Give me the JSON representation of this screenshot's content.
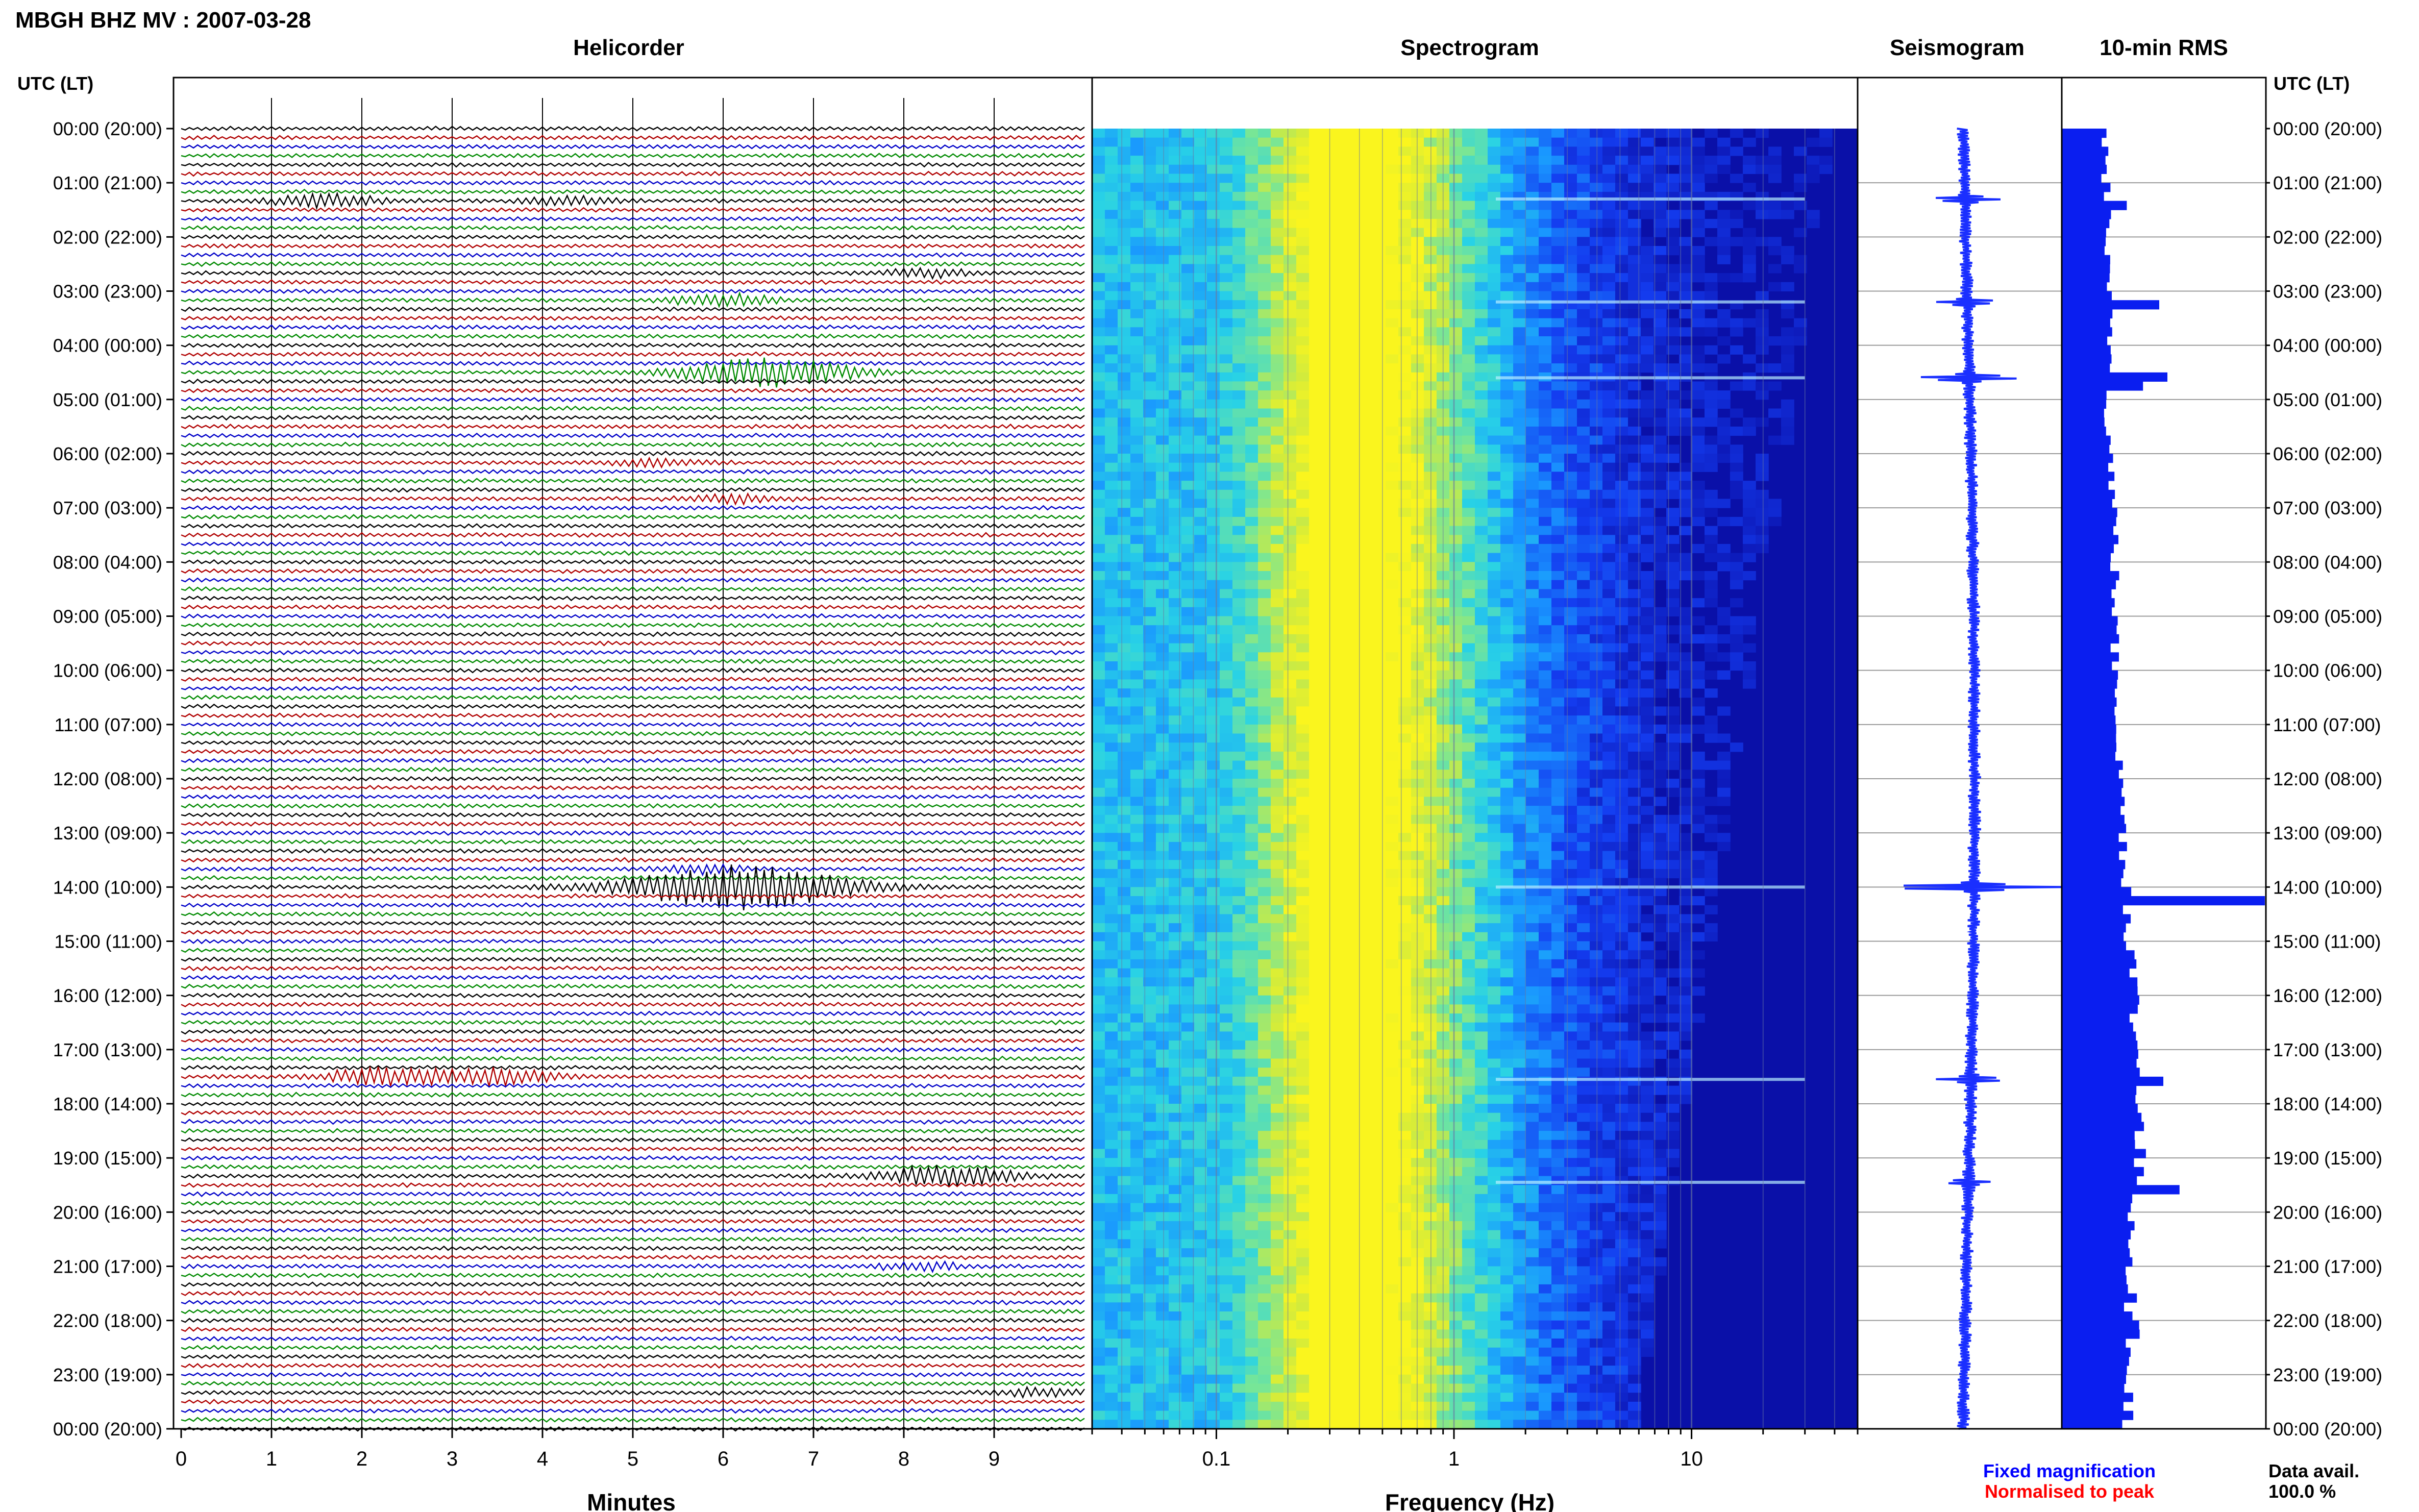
{
  "title": "MBGH BHZ MV : 2007-03-28",
  "panels": {
    "helicorder": "Helicorder",
    "spectrogram": "Spectrogram",
    "seismogram": "Seismogram",
    "rms": "10-min RMS"
  },
  "axis_labels": {
    "left_header": "UTC (LT)",
    "right_header": "UTC (LT)",
    "minutes": "Minutes",
    "frequency": "Frequency (Hz)"
  },
  "legend": {
    "fixed": "Fixed magnification",
    "normalised": "Normalised to peak",
    "fixed_color": "#0000ff",
    "normalised_color": "#ff0000"
  },
  "data_avail": {
    "label": "Data avail.",
    "value": "100.0 %"
  },
  "colors": {
    "trace_cycle": [
      "#000000",
      "#b00000",
      "#0000c8",
      "#008a00"
    ],
    "seismogram": "#1a2fff",
    "rms_bar": "#0a1ef0",
    "spectrogram_low": "#0a0aa0",
    "spectrogram_mid": "#1fb3ff",
    "spectrogram_high": "#f0f020"
  },
  "chart_data": [
    {
      "type": "heatmap",
      "name": "Helicorder",
      "y_labels": [
        "00:00 (20:00)",
        "01:00 (21:00)",
        "02:00 (22:00)",
        "03:00 (23:00)",
        "04:00 (00:00)",
        "05:00 (01:00)",
        "06:00 (02:00)",
        "07:00 (03:00)",
        "08:00 (04:00)",
        "09:00 (05:00)",
        "10:00 (06:00)",
        "11:00 (07:00)",
        "12:00 (08:00)",
        "13:00 (09:00)",
        "14:00 (10:00)",
        "15:00 (11:00)",
        "16:00 (12:00)",
        "17:00 (13:00)",
        "18:00 (14:00)",
        "19:00 (15:00)",
        "20:00 (16:00)",
        "21:00 (17:00)",
        "22:00 (18:00)",
        "23:00 (19:00)",
        "00:00 (20:00)"
      ],
      "x_ticks": [
        "0",
        "1",
        "2",
        "3",
        "4",
        "5",
        "6",
        "7",
        "8",
        "9"
      ],
      "xlabel": "Minutes",
      "xlim": [
        0,
        10
      ],
      "traces_per_hour": 6,
      "events": [
        {
          "hour": 1.3,
          "minute": 1.6,
          "amp": 3
        },
        {
          "hour": 1.3,
          "minute": 4.3,
          "amp": 2
        },
        {
          "hour": 2.65,
          "minute": 8.3,
          "amp": 2
        },
        {
          "hour": 3.15,
          "minute": 6.0,
          "amp": 3
        },
        {
          "hour": 4.5,
          "minute": 6.5,
          "amp": 7
        },
        {
          "hour": 6.15,
          "minute": 5.2,
          "amp": 2
        },
        {
          "hour": 6.8,
          "minute": 6.1,
          "amp": 2
        },
        {
          "hour": 13.65,
          "minute": 5.8,
          "amp": 2
        },
        {
          "hour": 14.0,
          "minute": 6.2,
          "amp": 11
        },
        {
          "hour": 17.5,
          "minute": 2.2,
          "amp": 4
        },
        {
          "hour": 17.5,
          "minute": 3.5,
          "amp": 4
        },
        {
          "hour": 19.3,
          "minute": 8.5,
          "amp": 5
        },
        {
          "hour": 21.0,
          "minute": 8.2,
          "amp": 2
        },
        {
          "hour": 23.3,
          "minute": 9.5,
          "amp": 2
        }
      ]
    },
    {
      "type": "heatmap",
      "name": "Spectrogram",
      "xlabel": "Frequency (Hz)",
      "x_scale": "log",
      "x_ticks": [
        "0.1",
        "1",
        "10"
      ],
      "xlim": [
        0.03,
        50
      ],
      "hours": 24,
      "peak_frequency_hz": 0.25
    },
    {
      "type": "line",
      "name": "Seismogram",
      "spikes": [
        {
          "hour": 1.3,
          "amp": 0.35
        },
        {
          "hour": 3.2,
          "amp": 0.3
        },
        {
          "hour": 4.6,
          "amp": 0.55
        },
        {
          "hour": 14.0,
          "amp": 1.0
        },
        {
          "hour": 17.55,
          "amp": 0.35
        },
        {
          "hour": 19.45,
          "amp": 0.2
        }
      ]
    },
    {
      "type": "bar",
      "name": "10-min RMS",
      "bins_per_hour": 6,
      "hourly_base": [
        0.21,
        0.23,
        0.22,
        0.24,
        0.24,
        0.23,
        0.25,
        0.26,
        0.26,
        0.26,
        0.28,
        0.28,
        0.3,
        0.31,
        0.33,
        0.35,
        0.36,
        0.38,
        0.38,
        0.37,
        0.35,
        0.34,
        0.35,
        0.33
      ],
      "peaks": [
        {
          "bin": 8,
          "value": 0.32
        },
        {
          "bin": 19,
          "value": 0.48
        },
        {
          "bin": 27,
          "value": 0.52
        },
        {
          "bin": 28,
          "value": 0.4
        },
        {
          "bin": 0,
          "value": 0.22
        },
        {
          "bin": 85,
          "value": 1.0
        },
        {
          "bin": 105,
          "value": 0.5
        },
        {
          "bin": 117,
          "value": 0.58
        }
      ]
    }
  ]
}
